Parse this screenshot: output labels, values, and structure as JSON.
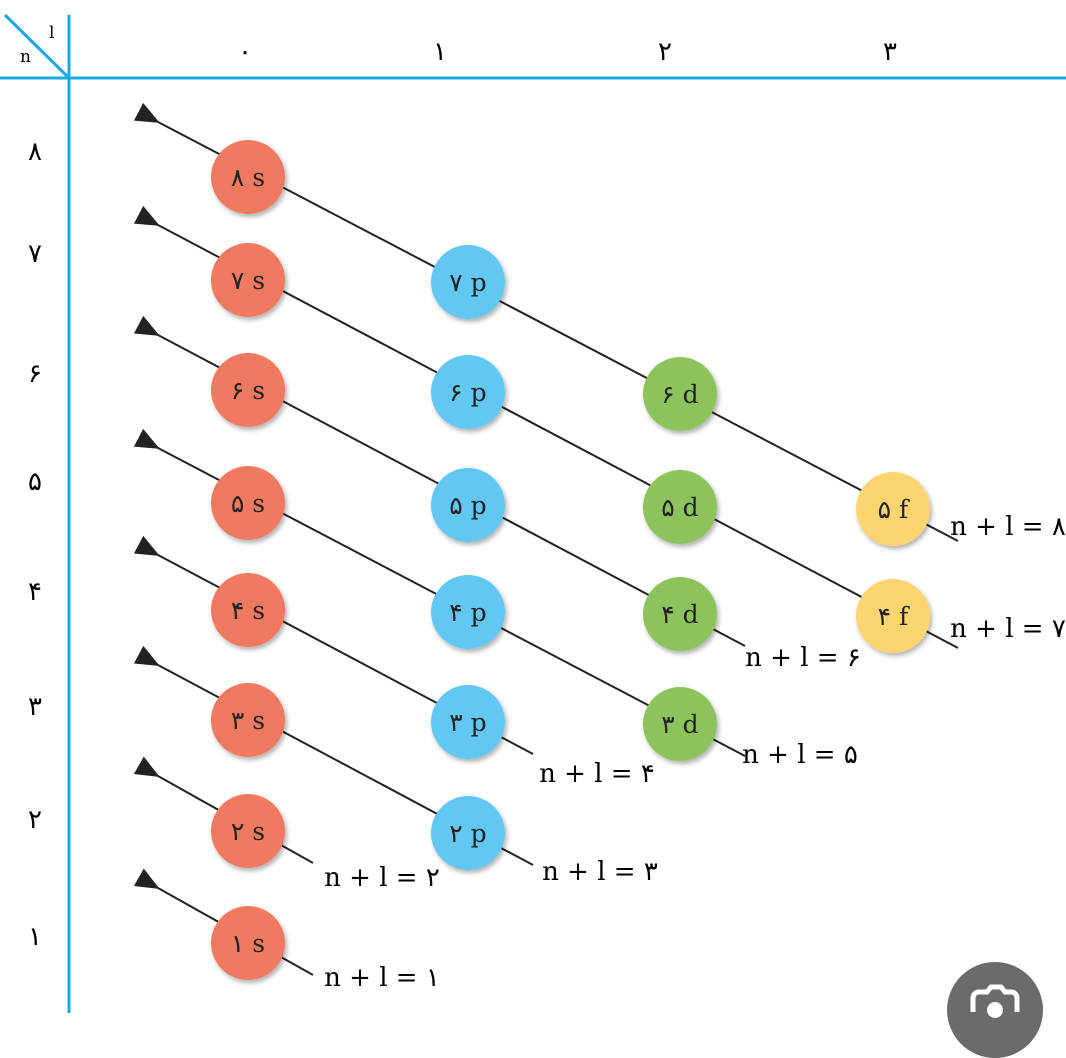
{
  "corner": {
    "n_label": "n",
    "l_label": "l"
  },
  "column_labels": [
    "۰",
    "۱",
    "۲",
    "۳"
  ],
  "row_labels": [
    {
      "n": 8,
      "label": "۸"
    },
    {
      "n": 7,
      "label": "۷"
    },
    {
      "n": 6,
      "label": "۶"
    },
    {
      "n": 5,
      "label": "۵"
    },
    {
      "n": 4,
      "label": "۴"
    },
    {
      "n": 3,
      "label": "۳"
    },
    {
      "n": 2,
      "label": "۲"
    },
    {
      "n": 1,
      "label": "۱"
    }
  ],
  "orbitals": [
    {
      "n": 8,
      "l": 0,
      "label": "۸ s"
    },
    {
      "n": 7,
      "l": 0,
      "label": "۷ s"
    },
    {
      "n": 7,
      "l": 1,
      "label": "۷ p"
    },
    {
      "n": 6,
      "l": 0,
      "label": "۶ s"
    },
    {
      "n": 6,
      "l": 1,
      "label": "۶ p"
    },
    {
      "n": 6,
      "l": 2,
      "label": "۶ d"
    },
    {
      "n": 5,
      "l": 0,
      "label": "۵ s"
    },
    {
      "n": 5,
      "l": 1,
      "label": "۵ p"
    },
    {
      "n": 5,
      "l": 2,
      "label": "۵ d"
    },
    {
      "n": 5,
      "l": 3,
      "label": "۵ f"
    },
    {
      "n": 4,
      "l": 0,
      "label": "۴ s"
    },
    {
      "n": 4,
      "l": 1,
      "label": "۴ p"
    },
    {
      "n": 4,
      "l": 2,
      "label": "۴ d"
    },
    {
      "n": 4,
      "l": 3,
      "label": "۴ f"
    },
    {
      "n": 3,
      "l": 0,
      "label": "۳ s"
    },
    {
      "n": 3,
      "l": 1,
      "label": "۳ p"
    },
    {
      "n": 3,
      "l": 2,
      "label": "۳ d"
    },
    {
      "n": 2,
      "l": 0,
      "label": "۲ s"
    },
    {
      "n": 2,
      "l": 1,
      "label": "۲ p"
    },
    {
      "n": 1,
      "l": 0,
      "label": "۱ s"
    }
  ],
  "diagonals": [
    {
      "sum": 8,
      "label": "n + l = ۸"
    },
    {
      "sum": 7,
      "label": "n + l = ۷"
    },
    {
      "sum": 6,
      "label": "n + l = ۶"
    },
    {
      "sum": 5,
      "label": "n + l = ۵"
    },
    {
      "sum": 4,
      "label": "n + l = ۴"
    },
    {
      "sum": 3,
      "label": "n + l = ۳"
    },
    {
      "sum": 2,
      "label": "n + l = ۲"
    },
    {
      "sum": 1,
      "label": "n + l = ۱"
    }
  ],
  "colors": {
    "axis": "#1ba8e1",
    "s": "#f07a5f",
    "p": "#62c7f2",
    "d": "#8dc35c",
    "f": "#fcd470",
    "line": "#222222"
  },
  "lens_button": {
    "icon": "camera-search-icon"
  }
}
